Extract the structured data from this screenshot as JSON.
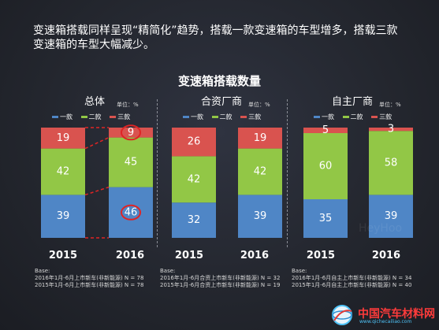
{
  "headline": "变速箱搭载同样呈现“精简化”趋势，搭载一款变速箱的车型增多，搭载三款变速箱的车型大幅减少。",
  "colors": {
    "one": "#4f86c6",
    "two": "#92c746",
    "three": "#d9534f",
    "highlight": "#e02424"
  },
  "watermark": "HeyHoo",
  "logo": {
    "text": "中国汽车材料网",
    "sub": "www.qichecailiao.com",
    "icon": "globe-icon"
  },
  "chart_data": {
    "type": "bar",
    "title": "变速箱搭载数量",
    "unit": "单位：%",
    "legend": [
      "一款",
      "二款",
      "三款"
    ],
    "ylim": [
      0,
      100
    ],
    "panels": [
      {
        "name": "总体",
        "categories": [
          "2015",
          "2016"
        ],
        "series": [
          {
            "name": "一款",
            "values": [
              39,
              46
            ]
          },
          {
            "name": "二款",
            "values": [
              42,
              45
            ]
          },
          {
            "name": "三款",
            "values": [
              19,
              9
            ]
          }
        ],
        "base": [
          "Base:",
          "2016年1月-6月上市新车(非新能源) N = 78",
          "2015年1月-6月上市新车(非新能源) N = 78"
        ]
      },
      {
        "name": "合资厂商",
        "categories": [
          "2015",
          "2016"
        ],
        "series": [
          {
            "name": "一款",
            "values": [
              32,
              39
            ]
          },
          {
            "name": "二款",
            "values": [
              42,
              42
            ]
          },
          {
            "name": "三款",
            "values": [
              26,
              19
            ]
          }
        ],
        "base": [
          "Base:",
          "2016年1月-6月合资上市新车(非新能源) N = 32",
          "2015年1月-6月合资上市新车(非新能源) N = 19"
        ]
      },
      {
        "name": "自主厂商",
        "categories": [
          "2015",
          "2016"
        ],
        "series": [
          {
            "name": "一款",
            "values": [
              35,
              39
            ]
          },
          {
            "name": "二款",
            "values": [
              60,
              58
            ]
          },
          {
            "name": "三款",
            "values": [
              5,
              3
            ]
          }
        ],
        "base": [
          "Base:",
          "2016年1月-6月自主上市新车(非新能源) N = 34",
          "2015年1月-6月自主上市新车(非新能源) N = 40"
        ]
      }
    ],
    "highlights": [
      "9",
      "46"
    ]
  }
}
